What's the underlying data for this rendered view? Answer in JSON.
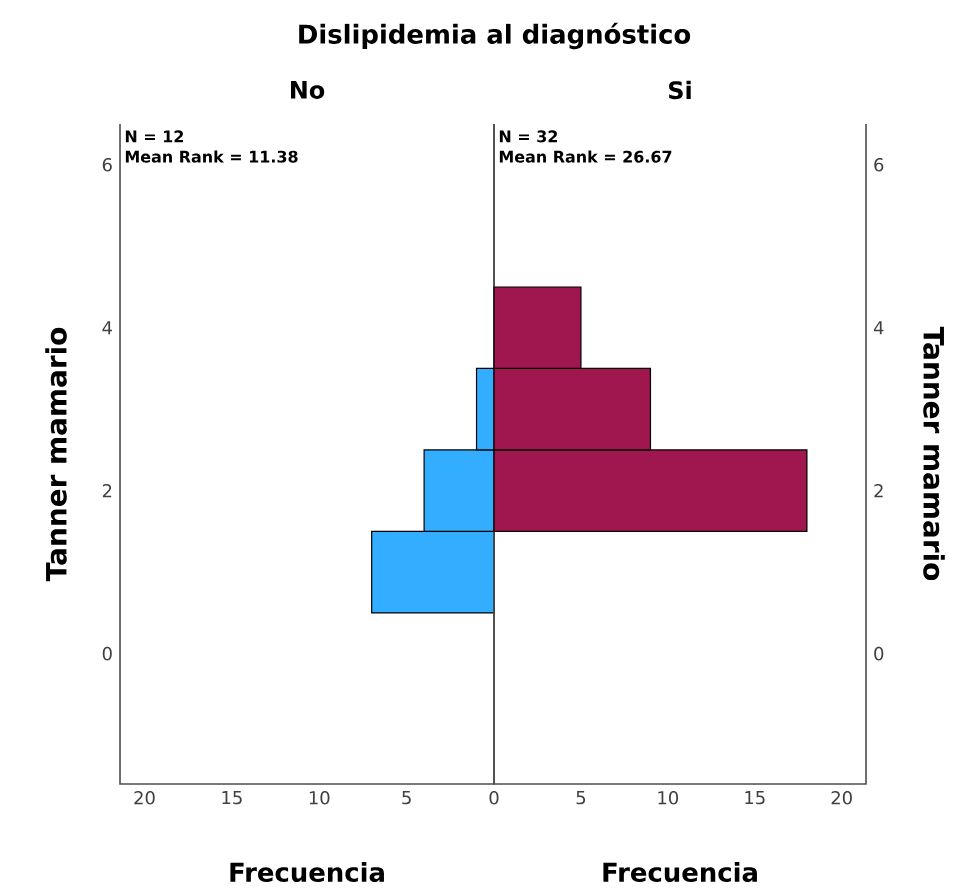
{
  "chart_data": [
    {
      "type": "histogram",
      "orientation": "horizontal",
      "title": "Dislipidemia al diagnóstico",
      "subtitle": "No",
      "ylabel": "Tanner mamario",
      "xlabel": "Frecuencia",
      "annotations": [
        "N = 12",
        "Mean Rank = 11.38"
      ],
      "bins": [
        0.5,
        1.5,
        2.5,
        3.5,
        4.5
      ],
      "values": [
        7,
        4,
        1,
        0
      ],
      "color": "#33adff",
      "xlim": [
        21.4,
        0
      ],
      "xticks": [
        20,
        15,
        10,
        5
      ],
      "ylim": [
        -1.6,
        6.5
      ],
      "yticks": [
        0,
        2,
        4,
        6
      ],
      "grid": false
    },
    {
      "type": "histogram",
      "orientation": "horizontal",
      "subtitle": "Si",
      "ylabel": "Tanner mamario",
      "xlabel": "Frecuencia",
      "annotations": [
        "N = 32",
        "Mean Rank = 26.67"
      ],
      "bins": [
        0.5,
        1.5,
        2.5,
        3.5,
        4.5
      ],
      "values": [
        0,
        18,
        9,
        5
      ],
      "color": "#a0174f",
      "xlim": [
        0,
        21.4
      ],
      "xticks": [
        0,
        5,
        10,
        15,
        20
      ],
      "ylim": [
        -1.6,
        6.5
      ],
      "yticks": [
        0,
        2,
        4,
        6
      ],
      "grid": false
    }
  ]
}
